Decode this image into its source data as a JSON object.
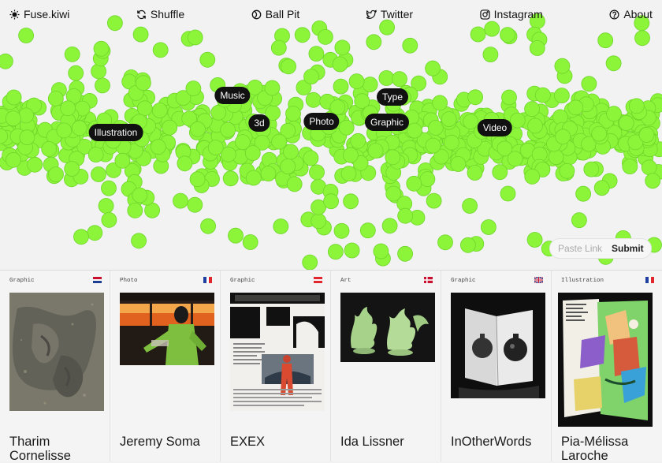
{
  "nav": {
    "brand": "Fuse.kiwi",
    "shuffle": "Shuffle",
    "ball_pit": "Ball Pit",
    "twitter": "Twitter",
    "instagram": "Instagram",
    "about": "About"
  },
  "tags": {
    "music": "Music",
    "type": "Type",
    "illustration": "Illustration",
    "three_d": "3d",
    "photo": "Photo",
    "graphic": "Graphic",
    "video": "Video"
  },
  "paste": {
    "placeholder": "Paste Link",
    "submit": "Submit"
  },
  "colors": {
    "ball": "#8cf53a",
    "ball_stroke": "#6fd62a",
    "tag_bg": "#111111",
    "bg": "#f2f2f2"
  },
  "cards": [
    {
      "category": "Graphic",
      "name": "Tharim Cornelisse",
      "flag": "nl"
    },
    {
      "category": "Photo",
      "name": "Jeremy Soma",
      "flag": "fr"
    },
    {
      "category": "Graphic",
      "name": "EXEX",
      "flag": "at"
    },
    {
      "category": "Art",
      "name": "Ida Lissner",
      "flag": "dk"
    },
    {
      "category": "Graphic",
      "name": "InOtherWords",
      "flag": "gb"
    },
    {
      "category": "Illustration",
      "name": "Pia-Mélissa Laroche",
      "flag": "fr"
    }
  ]
}
